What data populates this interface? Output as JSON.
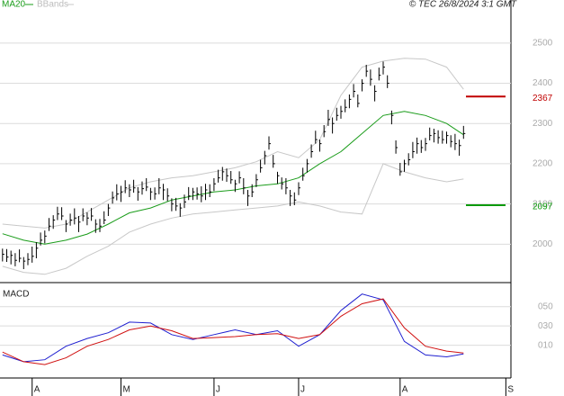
{
  "chart_data": [
    {
      "type": "ohlc",
      "copyright": "© TEC 26/8/2024 3:1 GMT",
      "color": "#000000",
      "x": [
        0,
        1,
        2,
        3,
        4,
        5,
        6,
        7,
        8,
        9,
        10,
        11,
        12,
        13,
        14,
        15,
        16,
        17,
        18,
        19,
        20,
        21,
        22,
        23,
        24,
        25,
        26,
        27,
        28,
        29,
        30,
        31,
        32,
        33,
        34,
        35,
        36,
        37,
        38,
        39,
        40,
        41,
        42,
        43,
        44,
        45,
        46,
        47,
        48,
        49,
        50,
        51,
        52,
        53,
        54,
        55,
        56,
        57,
        58,
        59,
        60,
        61,
        62,
        63,
        64,
        65,
        66,
        67,
        68,
        69,
        70,
        71,
        72,
        73,
        74,
        75,
        76,
        77,
        78,
        79,
        80,
        81,
        82,
        83,
        84,
        85,
        86,
        87,
        88,
        89,
        90,
        91,
        92,
        93,
        94,
        95,
        96,
        97,
        98,
        99,
        100,
        101,
        102,
        103,
        104,
        105,
        106,
        107,
        108,
        109
      ],
      "high": [
        1989,
        1988,
        1984,
        1978,
        1987,
        1968,
        1978,
        1994,
        2005,
        2029,
        2034,
        2065,
        2072,
        2093,
        2092,
        2060,
        2076,
        2089,
        2070,
        2089,
        2079,
        2090,
        2062,
        2063,
        2082,
        2100,
        2131,
        2149,
        2145,
        2159,
        2149,
        2160,
        2142,
        2156,
        2164,
        2140,
        2141,
        2164,
        2150,
        2139,
        2114,
        2115,
        2102,
        2123,
        2142,
        2140,
        2141,
        2144,
        2150,
        2149,
        2164,
        2185,
        2192,
        2188,
        2182,
        2160,
        2181,
        2164,
        2135,
        2149,
        2174,
        2210,
        2232,
        2268,
        2222,
        2180,
        2166,
        2164,
        2135,
        2129,
        2154,
        2190,
        2212,
        2248,
        2282,
        2260,
        2296,
        2334,
        2315,
        2339,
        2344,
        2360,
        2372,
        2398,
        2372,
        2410,
        2446,
        2434,
        2395,
        2439,
        2454,
        2420,
        2332,
        2258,
        2202,
        2210,
        2226,
        2254,
        2265,
        2259,
        2264,
        2290,
        2287,
        2283,
        2282,
        2280,
        2271,
        2274,
        2260,
        2294
      ],
      "low": [
        1957,
        1956,
        1950,
        1945,
        1955,
        1938,
        1948,
        1954,
        1965,
        1997,
        2002,
        2033,
        2038,
        2060,
        2060,
        2030,
        2046,
        2049,
        2030,
        2057,
        2047,
        2058,
        2028,
        2030,
        2050,
        2070,
        2101,
        2109,
        2105,
        2127,
        2117,
        2128,
        2108,
        2123,
        2132,
        2110,
        2111,
        2124,
        2110,
        2107,
        2082,
        2083,
        2068,
        2090,
        2110,
        2110,
        2111,
        2104,
        2110,
        2117,
        2132,
        2153,
        2158,
        2155,
        2150,
        2130,
        2151,
        2124,
        2095,
        2117,
        2142,
        2178,
        2198,
        2235,
        2190,
        2150,
        2136,
        2124,
        2095,
        2097,
        2122,
        2158,
        2178,
        2215,
        2250,
        2230,
        2266,
        2294,
        2275,
        2307,
        2312,
        2328,
        2338,
        2365,
        2340,
        2380,
        2416,
        2394,
        2355,
        2407,
        2422,
        2388,
        2298,
        2225,
        2170,
        2180,
        2196,
        2214,
        2225,
        2227,
        2232,
        2258,
        2253,
        2250,
        2250,
        2250,
        2241,
        2234,
        2220,
        2262
      ],
      "close": [
        1975,
        1968,
        1972,
        1960,
        1965,
        1958,
        1962,
        1970,
        1990,
        2010,
        2020,
        2045,
        2060,
        2075,
        2070,
        2050,
        2060,
        2065,
        2055,
        2070,
        2065,
        2070,
        2050,
        2045,
        2060,
        2090,
        2115,
        2125,
        2130,
        2140,
        2135,
        2140,
        2130,
        2138,
        2142,
        2130,
        2125,
        2140,
        2135,
        2120,
        2100,
        2095,
        2090,
        2105,
        2120,
        2130,
        2125,
        2120,
        2135,
        2130,
        2150,
        2165,
        2180,
        2170,
        2160,
        2150,
        2165,
        2140,
        2120,
        2130,
        2160,
        2190,
        2220,
        2250,
        2200,
        2170,
        2150,
        2140,
        2120,
        2110,
        2140,
        2170,
        2200,
        2230,
        2260,
        2250,
        2280,
        2310,
        2300,
        2320,
        2330,
        2340,
        2360,
        2380,
        2350,
        2400,
        2430,
        2410,
        2380,
        2420,
        2440,
        2400,
        2320,
        2240,
        2180,
        2200,
        2210,
        2230,
        2250,
        2240,
        2250,
        2270,
        2275,
        2265,
        2260,
        2270,
        2255,
        2250,
        2245,
        2275
      ],
      "lines": [
        {
          "name": "MA20",
          "color": "#1a9c1a",
          "x": [
            0,
            5,
            10,
            15,
            20,
            25,
            30,
            35,
            40,
            45,
            50,
            55,
            60,
            65,
            70,
            75,
            80,
            85,
            90,
            95,
            100,
            105,
            109
          ],
          "values": [
            2026,
            2010,
            2000,
            2010,
            2025,
            2050,
            2078,
            2090,
            2110,
            2120,
            2130,
            2135,
            2145,
            2150,
            2165,
            2200,
            2230,
            2275,
            2320,
            2330,
            2320,
            2300,
            2272
          ]
        },
        {
          "name": "BBands",
          "color": "#c8c8c8",
          "x": [
            0,
            5,
            10,
            15,
            20,
            25,
            30,
            35,
            40,
            45,
            50,
            55,
            60,
            65,
            70,
            75,
            80,
            85,
            90,
            95,
            100,
            105,
            109
          ],
          "upper": [
            2050,
            2045,
            2040,
            2050,
            2080,
            2110,
            2140,
            2155,
            2165,
            2170,
            2180,
            2190,
            2205,
            2230,
            2215,
            2260,
            2370,
            2440,
            2455,
            2462,
            2460,
            2440,
            2385
          ],
          "lower": [
            1945,
            1930,
            1925,
            1940,
            1970,
            1995,
            2030,
            2050,
            2065,
            2075,
            2080,
            2085,
            2090,
            2095,
            2105,
            2095,
            2080,
            2075,
            2200,
            2180,
            2165,
            2155,
            2162
          ]
        }
      ],
      "levels": [
        {
          "value": 2367,
          "color": "#c00000"
        },
        {
          "value": 2097,
          "color": "#0a9a0a"
        }
      ],
      "ylim": [
        1909,
        2607
      ],
      "yticks": [
        2000,
        2100,
        2200,
        2300,
        2400,
        2500
      ],
      "xlim": [
        -0.6,
        120.2
      ],
      "xticks": [
        {
          "value": 7,
          "label": "A"
        },
        {
          "value": 28,
          "label": "M"
        },
        {
          "value": 50,
          "label": "J"
        },
        {
          "value": 70,
          "label": "J"
        },
        {
          "value": 94,
          "label": "A"
        },
        {
          "value": 119,
          "label": "S"
        }
      ],
      "grid": true
    },
    {
      "type": "line",
      "title": "MACD",
      "series": [
        {
          "color": "#1f1fd0",
          "x": [
            0,
            5,
            10,
            15,
            20,
            25,
            30,
            35,
            40,
            45,
            50,
            55,
            60,
            65,
            70,
            75,
            80,
            85,
            90,
            95,
            100,
            105,
            109
          ],
          "values": [
            0,
            -7,
            -5,
            9,
            17,
            23,
            34,
            33,
            21,
            16,
            21,
            26,
            21,
            25,
            9,
            21,
            46,
            63,
            57,
            14,
            0,
            -2,
            1
          ]
        },
        {
          "color": "#d01010",
          "x": [
            0,
            5,
            10,
            15,
            20,
            25,
            30,
            35,
            40,
            45,
            50,
            55,
            60,
            65,
            70,
            75,
            80,
            85,
            90,
            95,
            100,
            105,
            109
          ],
          "values": [
            3,
            -7,
            -10,
            -3,
            9,
            16,
            26,
            30,
            25,
            17,
            18,
            19,
            21,
            22,
            17,
            21,
            40,
            53,
            58,
            28,
            9,
            4,
            2
          ]
        }
      ],
      "ylim": [
        -22,
        73
      ],
      "yticks": [
        {
          "value": 50,
          "label": "050"
        },
        {
          "value": 30,
          "label": "030"
        },
        {
          "value": 10,
          "label": "010"
        }
      ],
      "xlim": [
        -0.6,
        120.2
      ],
      "grid": true
    }
  ]
}
